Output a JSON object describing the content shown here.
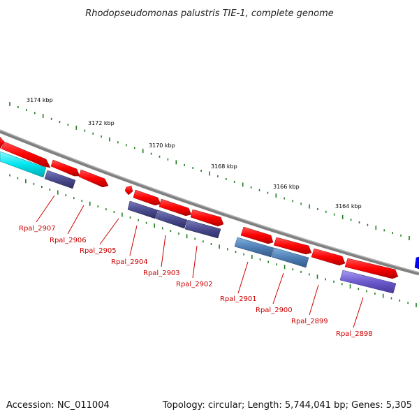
{
  "title": "Rhodopseudomonas palustris TIE-1, complete genome",
  "footer": {
    "accession": "Accession: NC_011004",
    "topology": "Topology: circular; Length: 5,744,041 bp; Genes: 5,305"
  },
  "scale_labels": [
    "3174 kbp",
    "3172 kbp",
    "3170 kbp",
    "3168 kbp",
    "3166 kbp",
    "3164 kbp"
  ],
  "gene_labels": [
    "Rpal_2907",
    "Rpal_2906",
    "Rpal_2905",
    "Rpal_2904",
    "Rpal_2903",
    "Rpal_2902",
    "Rpal_2901",
    "Rpal_2900",
    "Rpal_2899",
    "Rpal_2898"
  ],
  "colors": {
    "backbone": "#808080",
    "cds": "#ff0000",
    "feature_cyan": "#00e5ee",
    "feature_navy": "#4b4b8f",
    "feature_steel": "#4f7fb5",
    "feature_violet": "#6a5acd",
    "feature_blue": "#0000ff",
    "label": "#cc0000",
    "ticks": "#1f7f1f"
  }
}
